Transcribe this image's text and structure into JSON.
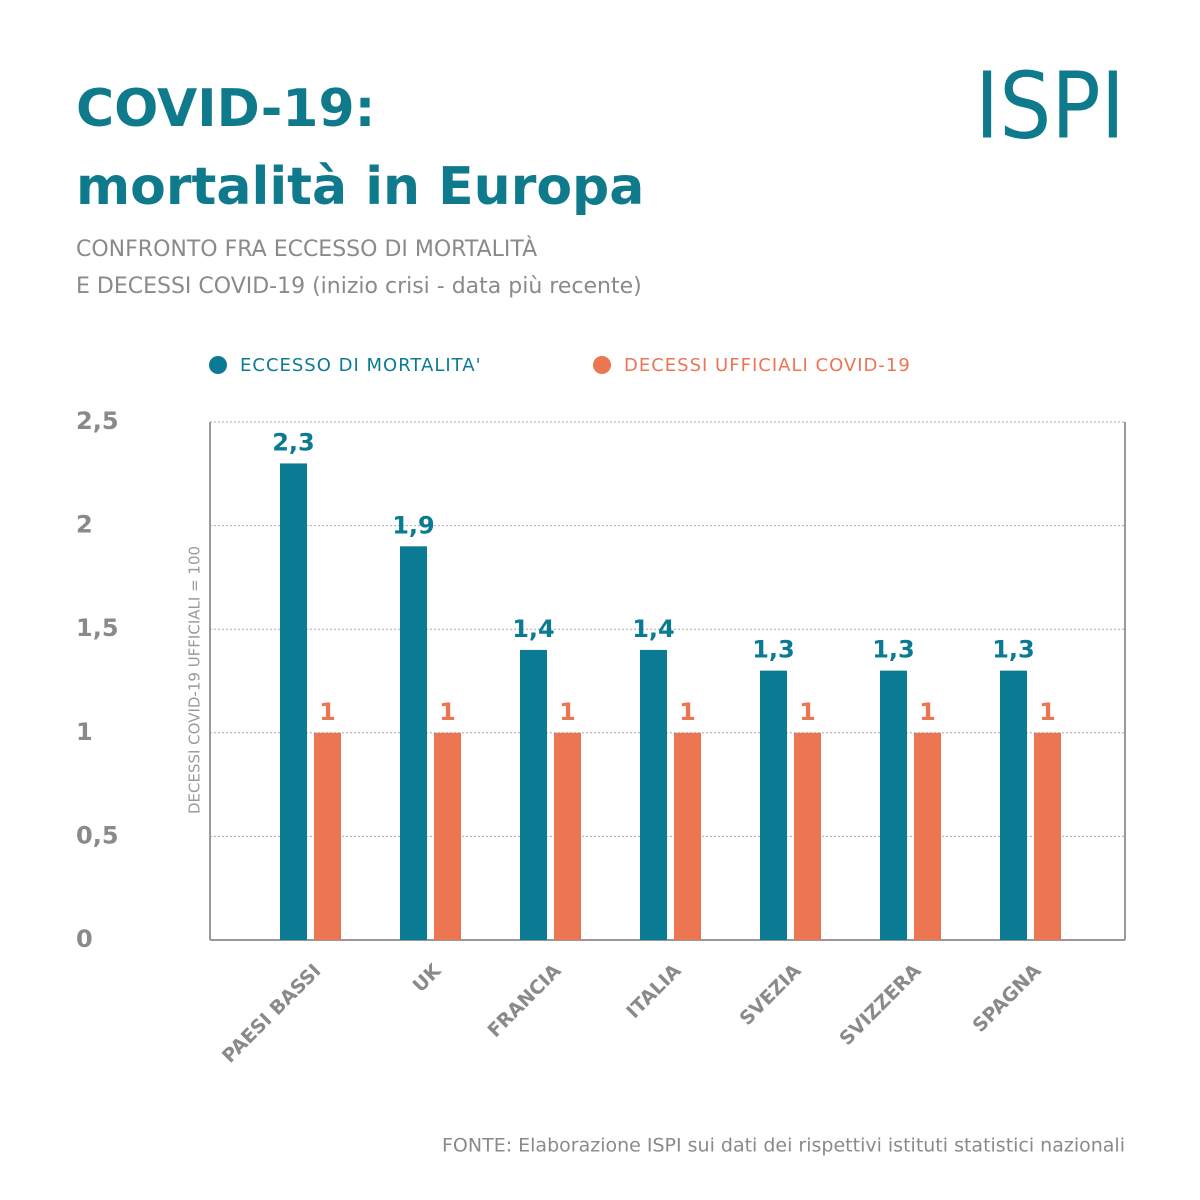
{
  "chart_data": {
    "type": "bar",
    "title": [
      "COVID-19:",
      "mortalità in Europa"
    ],
    "subtitle": [
      "CONFRONTO FRA ECCESSO DI MORTALITÀ",
      "E DECESSI COVID-19 (inizio crisi - data più recente)"
    ],
    "logo": "ISPI",
    "ylabel": "DECESSI COVID-19 UFFICIALI = 100",
    "categories": [
      "PAESI BASSI",
      "UK",
      "FRANCIA",
      "ITALIA",
      "SVEZIA",
      "SVIZZERA",
      "SPAGNA"
    ],
    "series": [
      {
        "name": "ECCESSO DI MORTALITA'",
        "color": "#0b7b93",
        "values": [
          2.3,
          1.9,
          1.4,
          1.4,
          1.3,
          1.3,
          1.3
        ],
        "value_labels": [
          "2,3",
          "1,9",
          "1,4",
          "1,4",
          "1,3",
          "1,3",
          "1,3"
        ]
      },
      {
        "name": "DECESSI UFFICIALI COVID-19",
        "color": "#ec7552",
        "values": [
          1,
          1,
          1,
          1,
          1,
          1,
          1
        ]
      }
    ],
    "ylim": [
      0,
      2.5
    ],
    "yticks": [
      0,
      {
        "value": 0.5,
        "label": "0,5"
      },
      1,
      {
        "value": 1.5,
        "label": "1,5"
      },
      2,
      {
        "value": 2.5,
        "label": "2,5"
      }
    ],
    "grid": true,
    "source": "FONTE: Elaborazione ISPI sui dati dei rispettivi istituti statistici nazionali"
  }
}
